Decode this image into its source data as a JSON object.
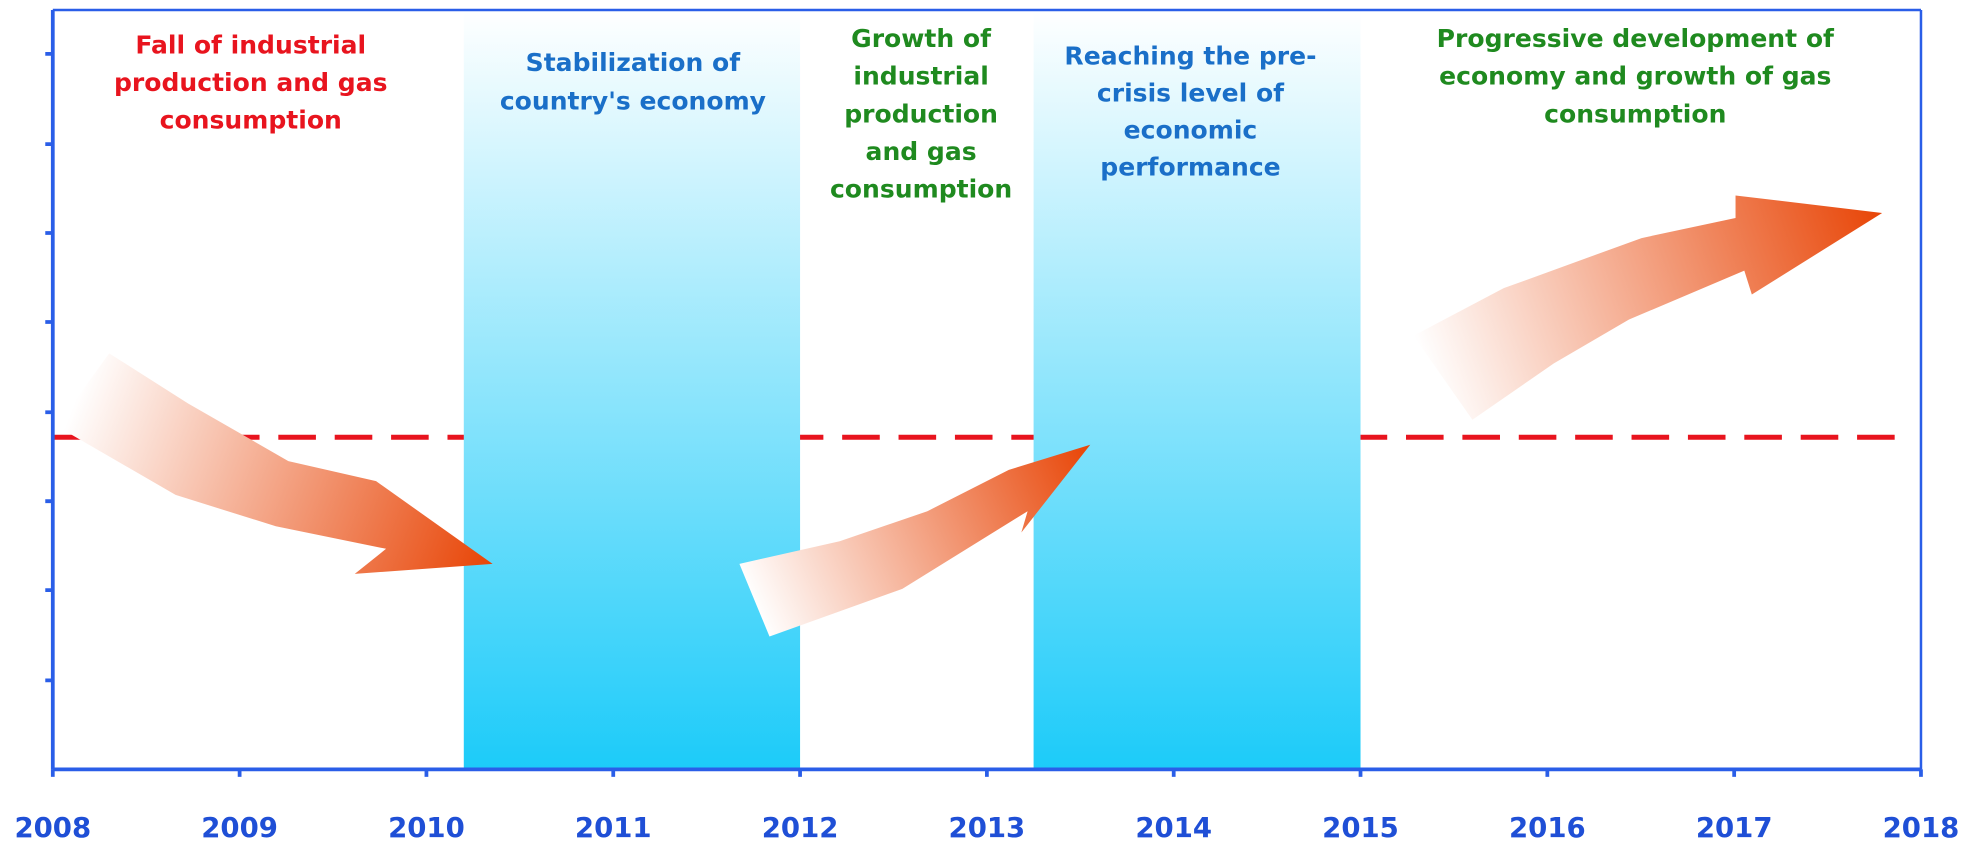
{
  "chart_data": {
    "type": "timeline",
    "xlim": [
      2008,
      2018
    ],
    "xticks": [
      2008,
      2009,
      2010,
      2011,
      2012,
      2013,
      2014,
      2015,
      2016,
      2017,
      2018
    ],
    "band_color": "#1ccbf9",
    "bands": [
      {
        "start": 2010.2,
        "end": 2012
      },
      {
        "start": 2013.25,
        "end": 2015
      }
    ],
    "phases": [
      {
        "label_lines": [
          "Fall of industrial",
          "production and gas",
          "consumption"
        ],
        "color": "#e8141e"
      },
      {
        "label_lines": [
          "Stabilization of",
          "country's economy"
        ],
        "color": "#1a6fc8"
      },
      {
        "label_lines": [
          "Growth of",
          "industrial",
          "production",
          "and gas",
          "consumption"
        ],
        "color": "#1f8a1f"
      },
      {
        "label_lines": [
          "Reaching the pre-",
          "crisis level of",
          "economic",
          "performance"
        ],
        "color": "#1a6fc8"
      },
      {
        "label_lines": [
          "Progressive development of",
          "economy and growth of gas",
          "consumption"
        ],
        "color": "#1f8a1f"
      }
    ]
  }
}
